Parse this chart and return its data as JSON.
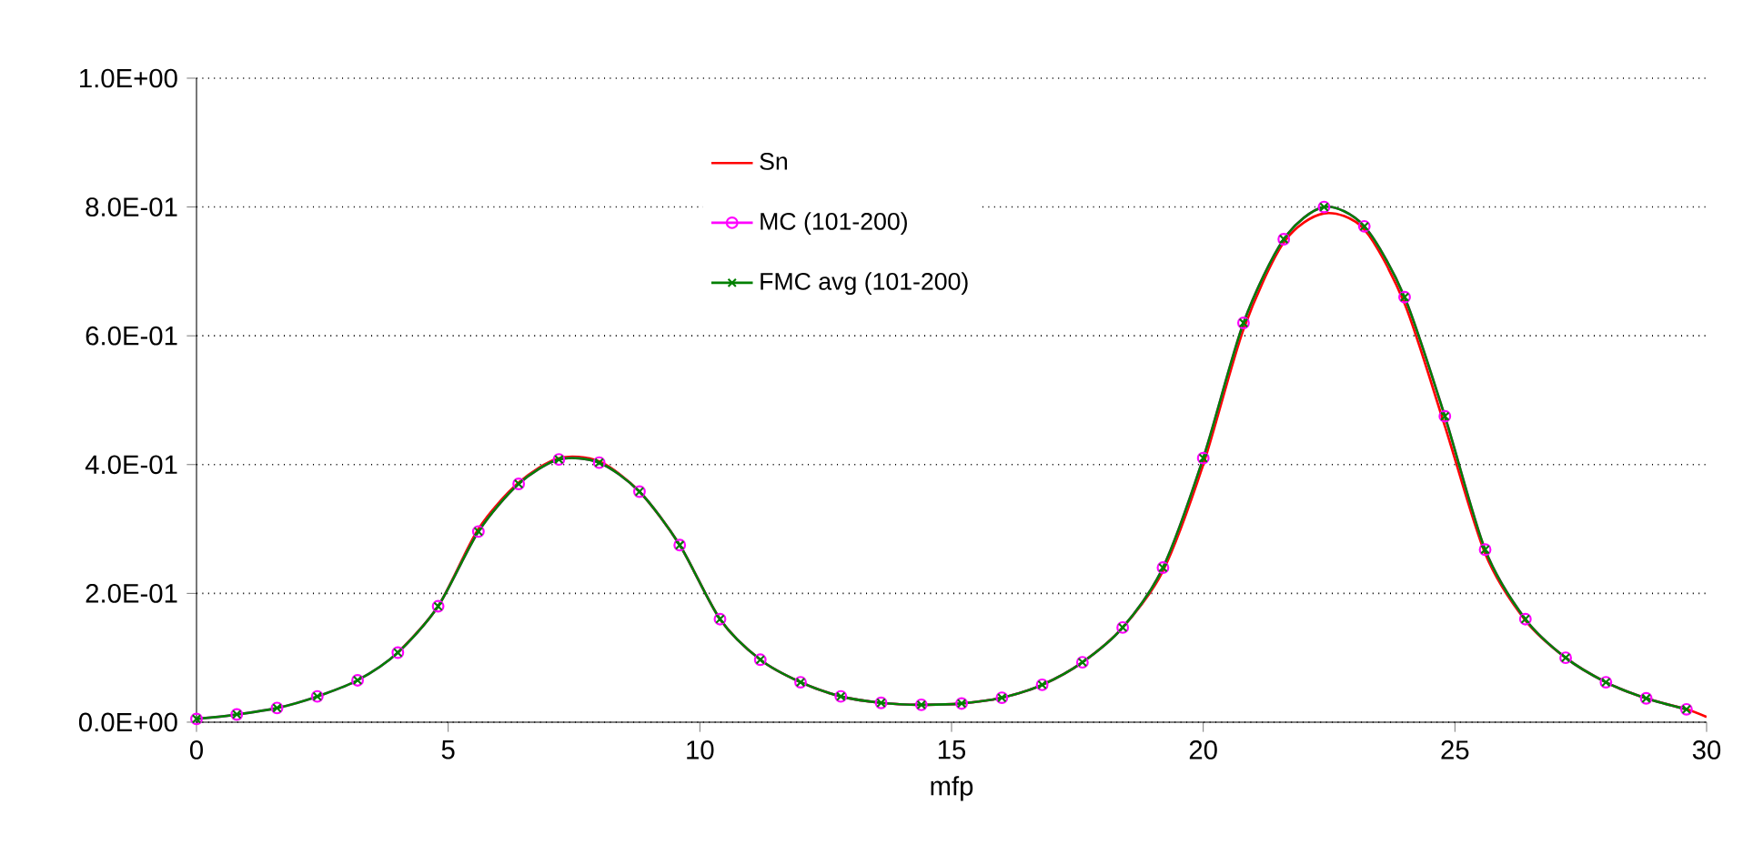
{
  "chart_data": {
    "type": "line",
    "xlabel": "mfp",
    "xlim": [
      0,
      30
    ],
    "ylim": [
      0,
      1
    ],
    "xticks": [
      0,
      5,
      10,
      15,
      20,
      25,
      30
    ],
    "yticks": [
      {
        "value": 0,
        "label": "0.0E+00"
      },
      {
        "value": 0.2,
        "label": "2.0E-01"
      },
      {
        "value": 0.4,
        "label": "4.0E-01"
      },
      {
        "value": 0.6,
        "label": "6.0E-01"
      },
      {
        "value": 0.8,
        "label": "8.0E-01"
      },
      {
        "value": 1,
        "label": "1.0E+00"
      }
    ],
    "grid": "y",
    "legend": "top",
    "series": [
      {
        "name": "Sn",
        "color": "#ff0000",
        "marker": "none",
        "x": [
          4.0,
          4.8,
          5.6,
          6.4,
          7.2,
          8.0,
          8.8,
          9.6,
          10.4,
          11.2,
          12.0,
          12.8,
          13.6,
          14.4,
          15.2,
          16.0,
          16.8,
          17.6,
          18.4,
          19.2,
          20.0,
          20.8,
          21.6,
          22.4,
          23.2,
          24.0,
          24.8,
          25.6,
          26.4,
          27.2,
          28.0,
          28.8,
          29.6,
          30
        ],
        "values": [
          0.108,
          0.18,
          0.3,
          0.372,
          0.41,
          0.405,
          0.358,
          0.275,
          0.16,
          0.097,
          0.062,
          0.04,
          0.03,
          0.027,
          0.029,
          0.038,
          0.058,
          0.093,
          0.147,
          0.235,
          0.4,
          0.61,
          0.745,
          0.79,
          0.765,
          0.65,
          0.46,
          0.262,
          0.158,
          0.1,
          0.062,
          0.037,
          0.02,
          0.008
        ]
      },
      {
        "name": "MC (101-200)",
        "color": "#ff00ff",
        "marker": "circle",
        "x": [
          0,
          0.8,
          1.6,
          2.4,
          3.2,
          4.0,
          4.8,
          5.6,
          6.4,
          7.2,
          8.0,
          8.8,
          9.6,
          10.4,
          11.2,
          12.0,
          12.8,
          13.6,
          14.4,
          15.2,
          16.0,
          16.8,
          17.6,
          18.4,
          19.2,
          20.0,
          20.8,
          21.6,
          22.4,
          23.2,
          24.0,
          24.8,
          25.6,
          26.4,
          27.2,
          28.0,
          28.8,
          29.6
        ],
        "values": [
          0.005,
          0.012,
          0.022,
          0.04,
          0.065,
          0.108,
          0.18,
          0.296,
          0.37,
          0.408,
          0.403,
          0.358,
          0.275,
          0.16,
          0.097,
          0.062,
          0.04,
          0.03,
          0.027,
          0.029,
          0.038,
          0.058,
          0.093,
          0.147,
          0.24,
          0.41,
          0.62,
          0.75,
          0.8,
          0.77,
          0.66,
          0.475,
          0.268,
          0.16,
          0.1,
          0.062,
          0.037,
          0.02
        ]
      },
      {
        "name": "FMC avg (101-200)",
        "color": "#008000",
        "marker": "cross",
        "x": [
          0,
          0.8,
          1.6,
          2.4,
          3.2,
          4.0,
          4.8,
          5.6,
          6.4,
          7.2,
          8.0,
          8.8,
          9.6,
          10.4,
          11.2,
          12.0,
          12.8,
          13.6,
          14.4,
          15.2,
          16.0,
          16.8,
          17.6,
          18.4,
          19.2,
          20.0,
          20.8,
          21.6,
          22.4,
          23.2,
          24.0,
          24.8,
          25.6,
          26.4,
          27.2,
          28.0,
          28.8,
          29.6
        ],
        "values": [
          0.005,
          0.012,
          0.022,
          0.04,
          0.065,
          0.108,
          0.18,
          0.296,
          0.37,
          0.408,
          0.403,
          0.358,
          0.275,
          0.16,
          0.097,
          0.062,
          0.04,
          0.03,
          0.027,
          0.029,
          0.038,
          0.058,
          0.093,
          0.147,
          0.24,
          0.41,
          0.62,
          0.75,
          0.8,
          0.77,
          0.66,
          0.475,
          0.268,
          0.16,
          0.1,
          0.062,
          0.037,
          0.02
        ]
      }
    ]
  }
}
